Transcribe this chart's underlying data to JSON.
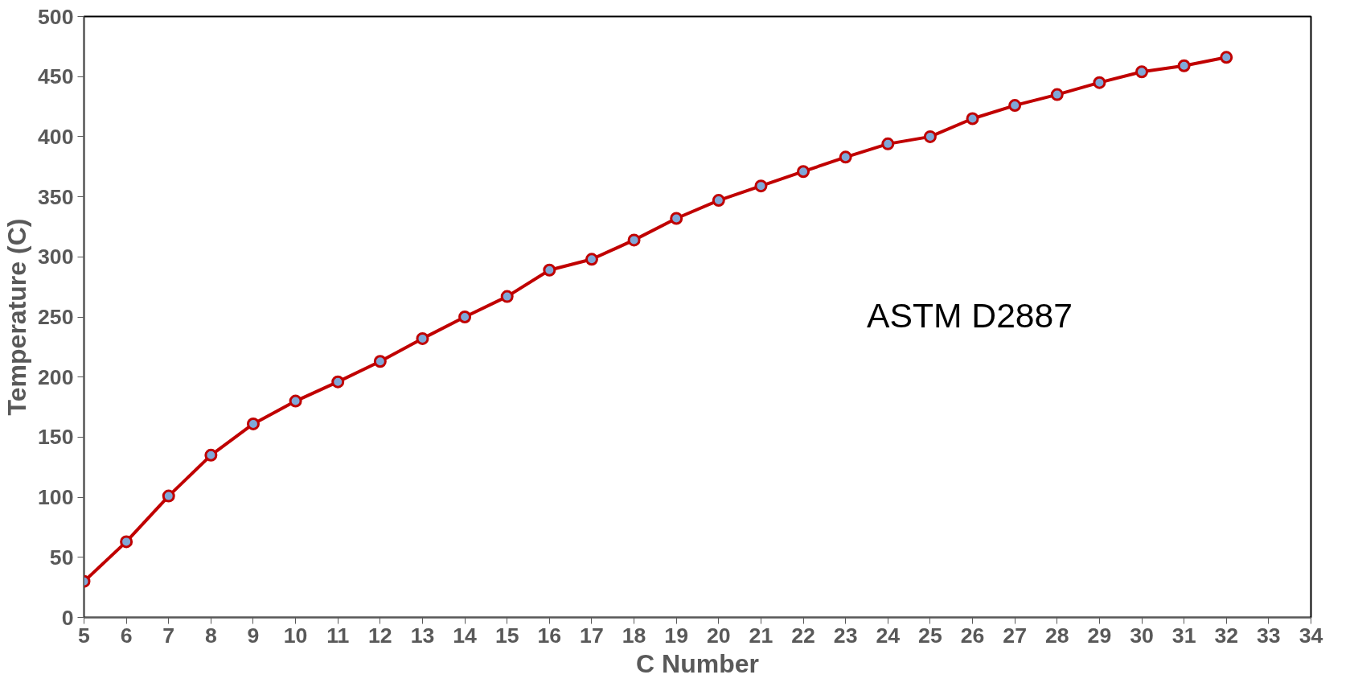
{
  "chart_data": {
    "type": "line",
    "xlabel": "C Number",
    "ylabel": "Temperature (C)",
    "x": [
      5,
      6,
      7,
      8,
      9,
      10,
      11,
      12,
      13,
      14,
      15,
      16,
      17,
      18,
      19,
      20,
      21,
      22,
      23,
      24,
      25,
      26,
      27,
      28,
      29,
      30,
      31,
      32
    ],
    "series": [
      {
        "color": "#c00000",
        "values": [
          30,
          63,
          101,
          135,
          161,
          180,
          196,
          213,
          232,
          250,
          267,
          289,
          298,
          314,
          332,
          347,
          359,
          371,
          383,
          394,
          400,
          415,
          426,
          435,
          445,
          454,
          459,
          466
        ]
      }
    ],
    "xlim": [
      5,
      34
    ],
    "xticks": [
      5,
      6,
      7,
      8,
      9,
      10,
      11,
      12,
      13,
      14,
      15,
      16,
      17,
      18,
      19,
      20,
      21,
      22,
      23,
      24,
      25,
      26,
      27,
      28,
      29,
      30,
      31,
      32,
      33,
      34
    ],
    "ylim": [
      0,
      500
    ],
    "yticks": [
      0,
      50,
      100,
      150,
      200,
      250,
      300,
      350,
      400,
      450,
      500
    ],
    "grid": false,
    "marker": "circle",
    "line_style": "solid",
    "annotations": [
      "ASTM D2887"
    ]
  }
}
